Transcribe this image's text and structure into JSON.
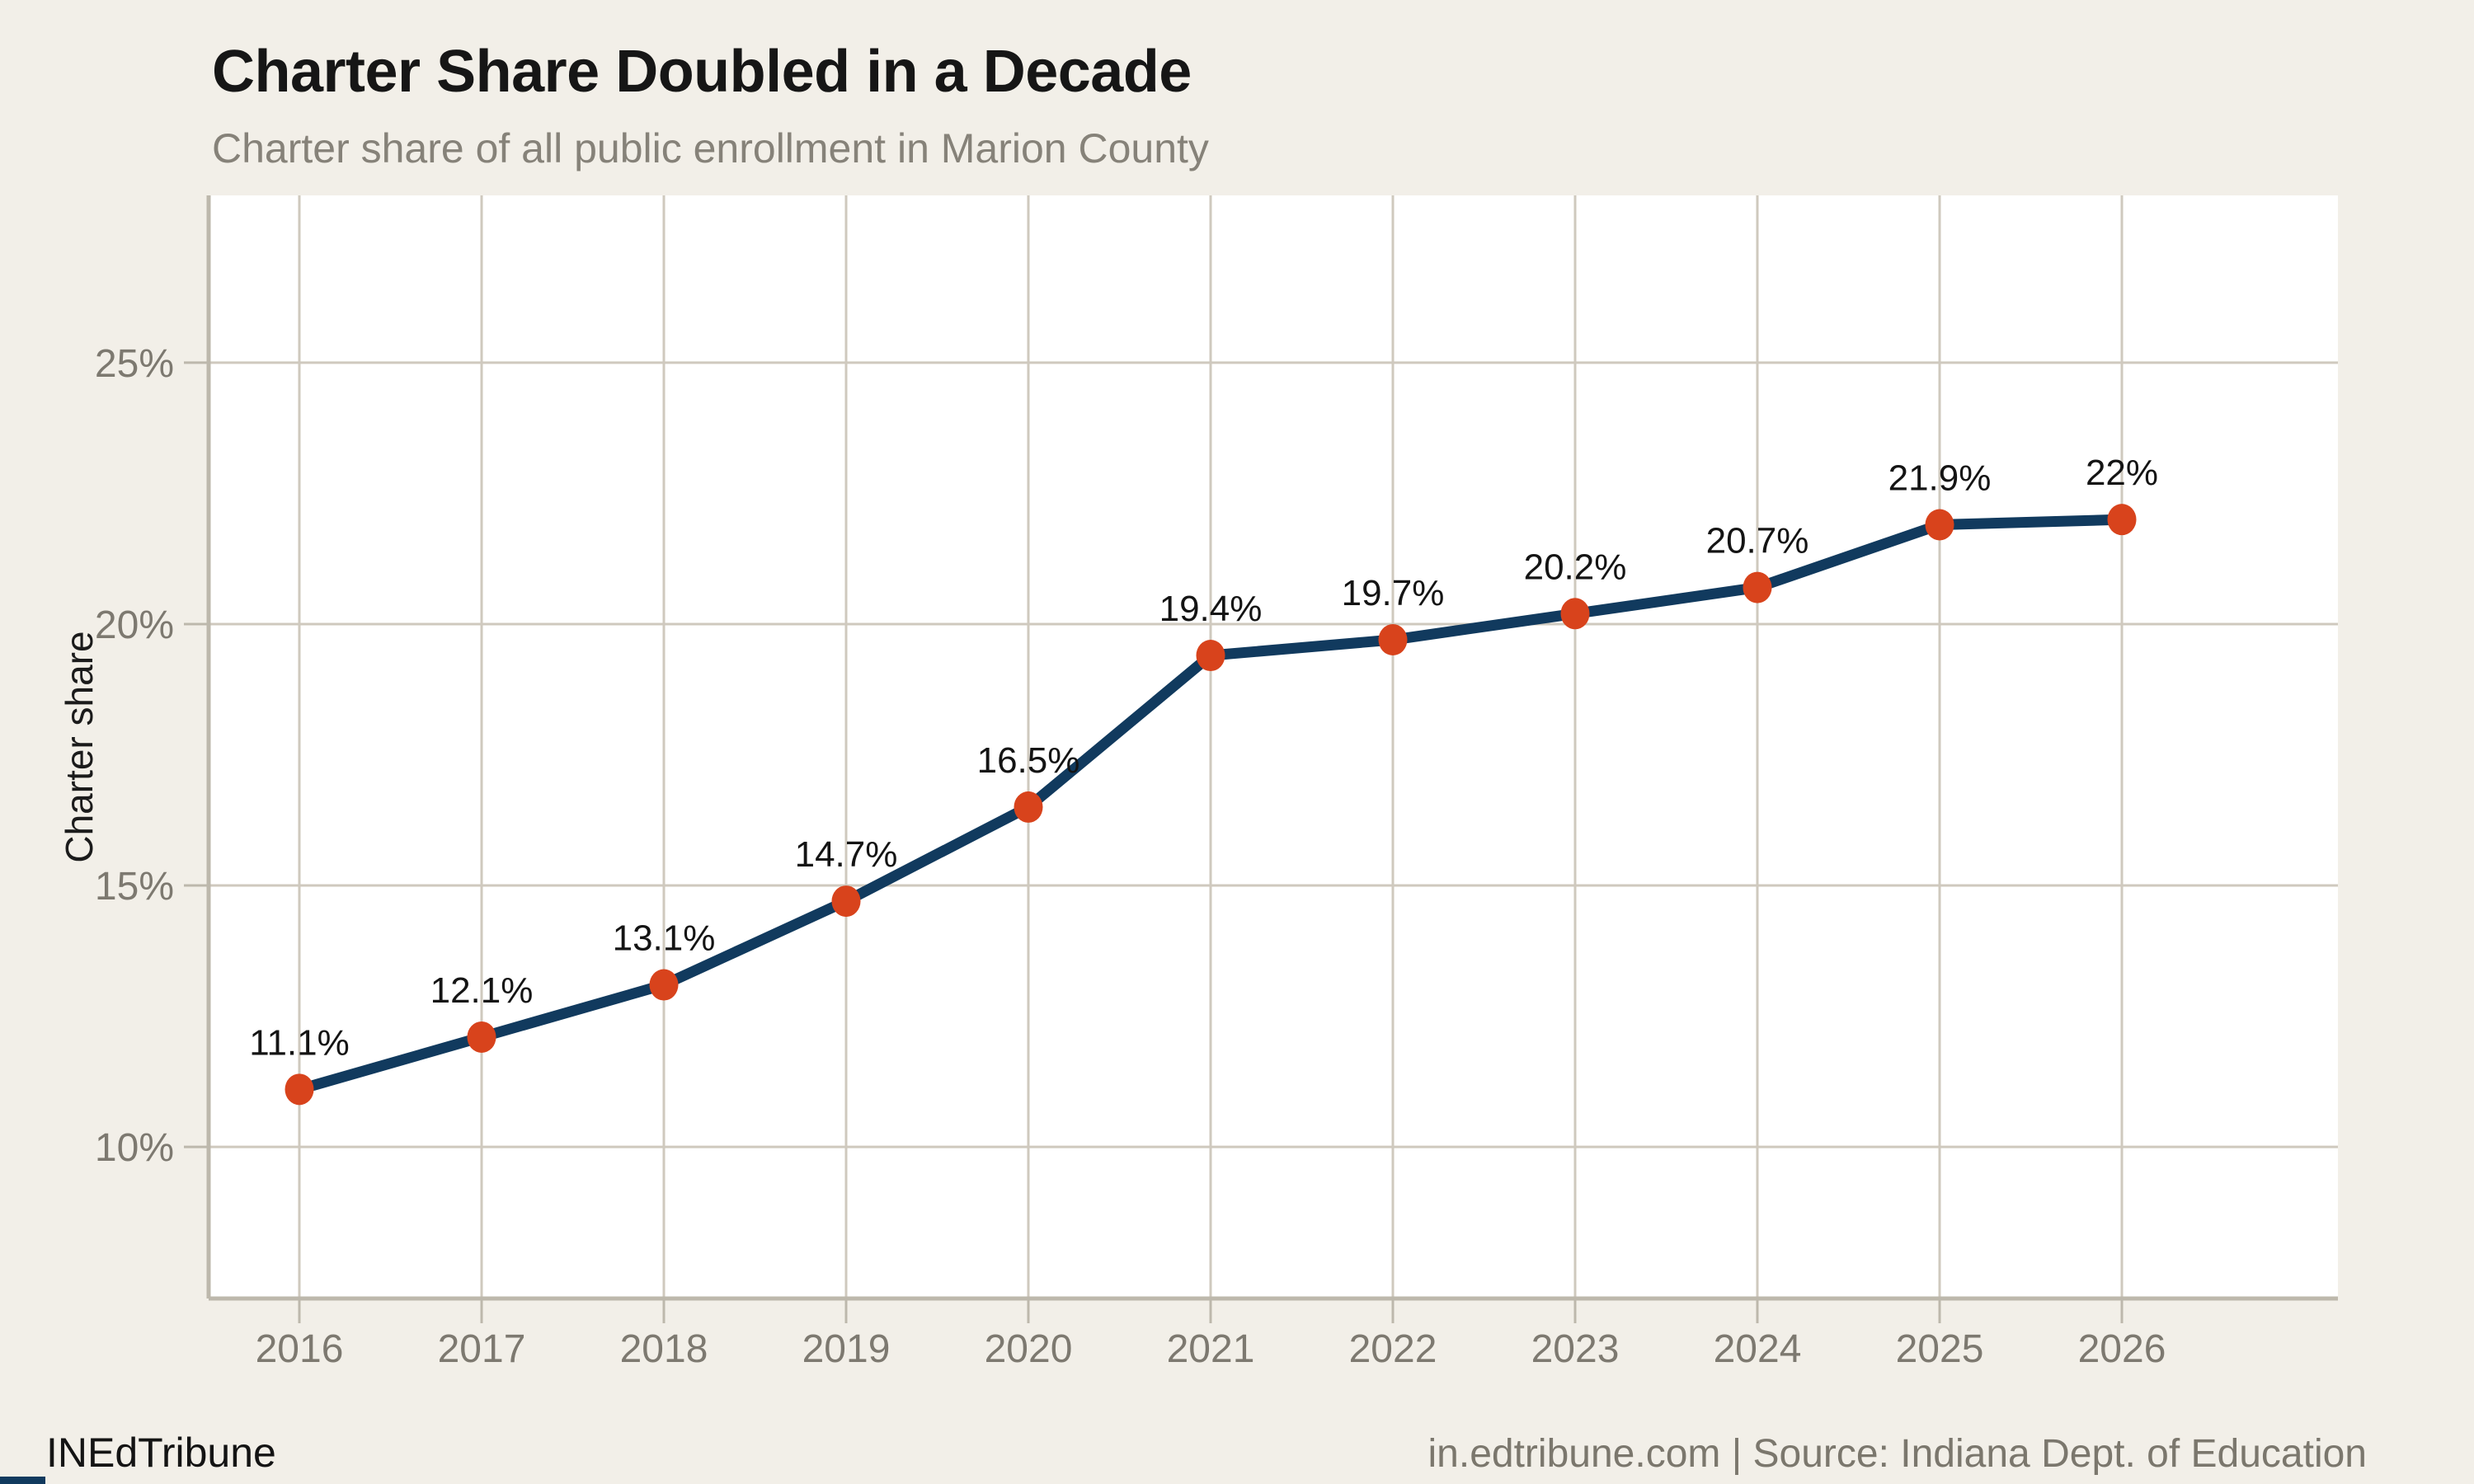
{
  "header": {
    "title": "Charter Share Doubled in a Decade",
    "subtitle": "Charter share of all public enrollment in Marion County"
  },
  "footer": {
    "brand": "INEdTribune",
    "attribution": "in.edtribune.com | Source: Indiana Dept. of Education"
  },
  "chart_data": {
    "type": "line",
    "title": "Charter Share Doubled in a Decade",
    "subtitle": "Charter share of all public enrollment in Marion County",
    "x": [
      2016,
      2017,
      2018,
      2019,
      2020,
      2021,
      2022,
      2023,
      2024,
      2025,
      2026
    ],
    "values": [
      11.1,
      12.1,
      13.1,
      14.7,
      16.5,
      19.4,
      19.7,
      20.2,
      20.7,
      21.9,
      22
    ],
    "point_labels": [
      "11.1%",
      "12.1%",
      "13.1%",
      "14.7%",
      "16.5%",
      "19.4%",
      "19.7%",
      "20.2%",
      "20.7%",
      "21.9%",
      "22%"
    ],
    "xlabel": "",
    "ylabel": "Charter share",
    "ylim": [
      7.1,
      28.2
    ],
    "yticks": [
      10,
      15,
      20,
      25
    ],
    "ytick_labels": [
      "10%",
      "15%",
      "20%",
      "25%"
    ],
    "grid": true,
    "legend": "none",
    "colors": {
      "line": "#113a5e",
      "marker": "#d8431c",
      "plot_background": "#ffffff",
      "page_background": "#f2efe8",
      "gridline": "#cfc9be",
      "axis": "#bdb8ac",
      "tick_label": "#7d7970",
      "data_label": "#141414"
    }
  }
}
